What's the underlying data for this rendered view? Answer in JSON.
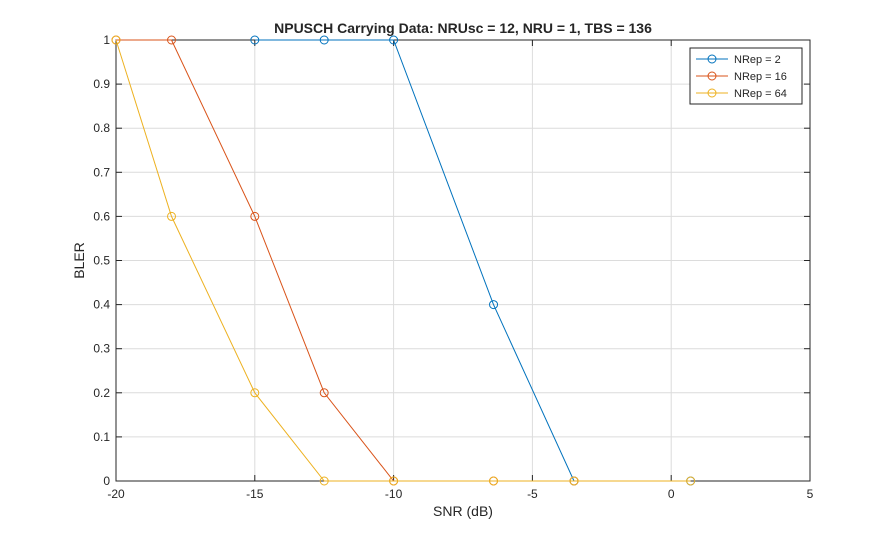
{
  "chart_data": {
    "type": "line",
    "title": "NPUSCH Carrying Data: NRUsc = 12, NRU = 1, TBS = 136",
    "xlabel": "SNR (dB)",
    "ylabel": "BLER",
    "xlim": [
      -20,
      5
    ],
    "ylim": [
      0,
      1
    ],
    "xticks": [
      -20,
      -15,
      -10,
      -5,
      0,
      5
    ],
    "xtick_labels": [
      "-20",
      "-15",
      "-10",
      "-5",
      "0",
      "5"
    ],
    "yticks": [
      0,
      0.1,
      0.2,
      0.3,
      0.4,
      0.5,
      0.6,
      0.7,
      0.8,
      0.9,
      1
    ],
    "ytick_labels": [
      "0",
      "0.1",
      "0.2",
      "0.3",
      "0.4",
      "0.5",
      "0.6",
      "0.7",
      "0.8",
      "0.9",
      "1"
    ],
    "grid": true,
    "legend_position": "top-right",
    "series": [
      {
        "name": "NRep = 2",
        "color": "#0072BD",
        "marker": "circle",
        "x": [
          -15,
          -12.5,
          -10,
          -6.4,
          -3.5,
          0.7
        ],
        "y": [
          1,
          1,
          1,
          0.4,
          0,
          0
        ]
      },
      {
        "name": "NRep = 16",
        "color": "#D95319",
        "marker": "circle",
        "x": [
          -20,
          -18,
          -15,
          -12.5,
          -10,
          -6.4,
          -3.5
        ],
        "y": [
          1,
          1,
          0.6,
          0.2,
          0,
          0,
          0
        ]
      },
      {
        "name": "NRep = 64",
        "color": "#EDB120",
        "marker": "circle",
        "x": [
          -20,
          -18,
          -15,
          -12.5,
          -10,
          -6.4,
          -3.5,
          0.7
        ],
        "y": [
          1,
          0.6,
          0.2,
          0,
          0,
          0,
          0,
          0
        ]
      }
    ]
  }
}
